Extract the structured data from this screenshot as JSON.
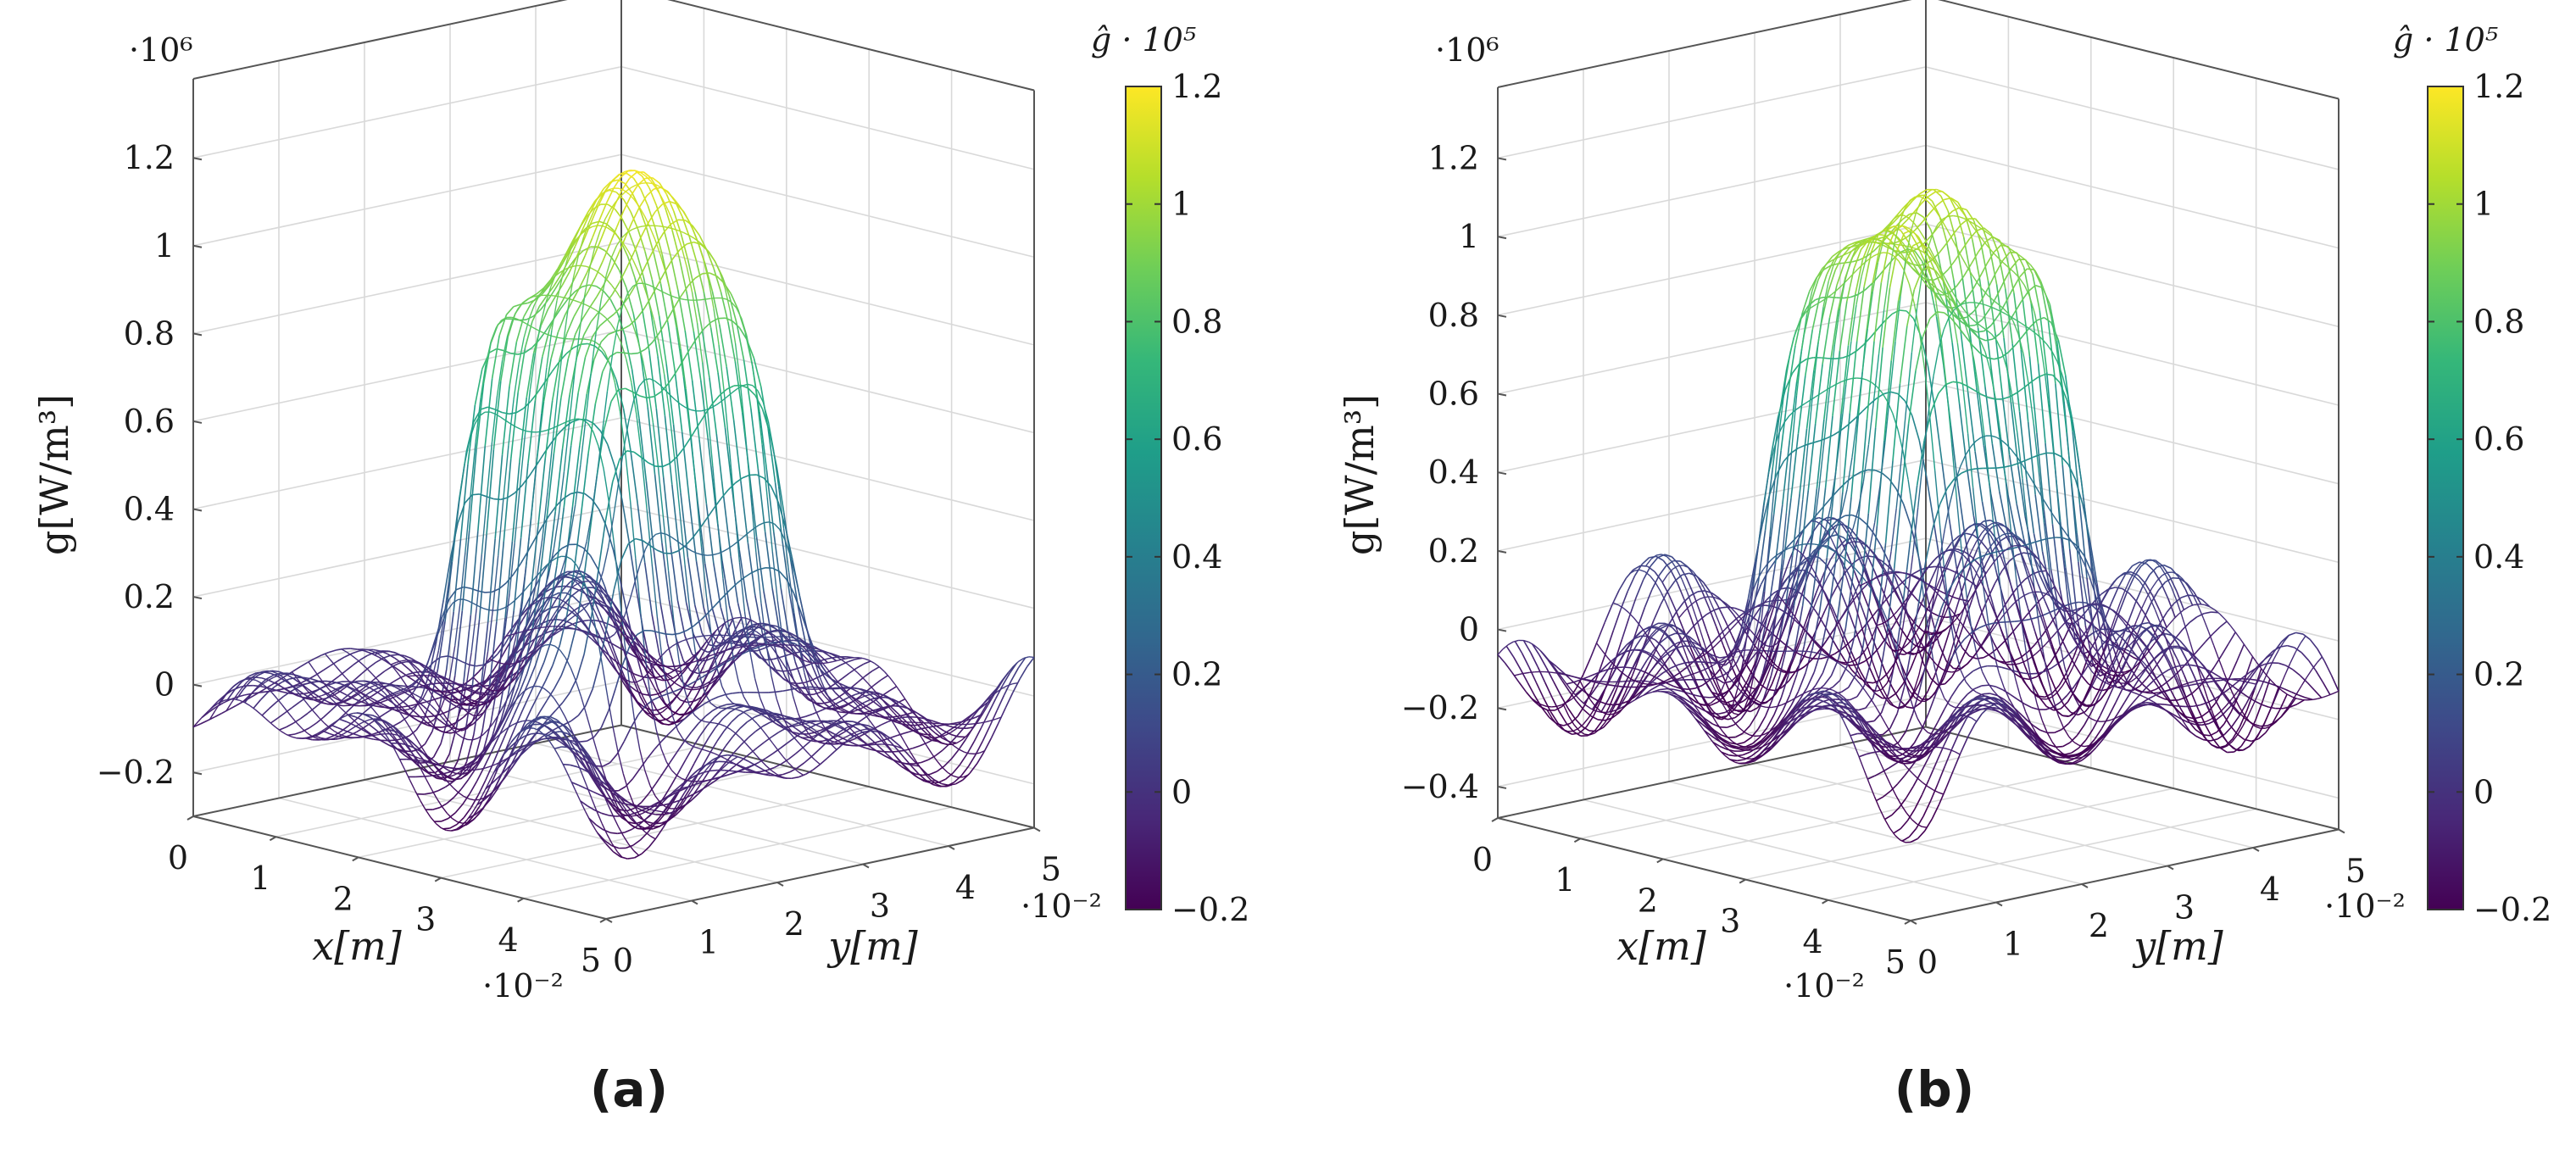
{
  "chart_data": [
    {
      "id": "a",
      "type": "surface3d",
      "subfigure_label": "(a)",
      "xlabel": "x[m]",
      "ylabel": "y[m]",
      "zlabel": "g[W/m³]",
      "x_multiplier": "·10⁻²",
      "y_multiplier": "·10⁻²",
      "z_multiplier": "·10⁶",
      "x_ticks": [
        "0",
        "1",
        "2",
        "3",
        "4",
        "5"
      ],
      "y_ticks": [
        "0",
        "1",
        "2",
        "3",
        "4",
        "5"
      ],
      "z_ticks": [
        "−0.2",
        "0",
        "0.2",
        "0.4",
        "0.6",
        "0.8",
        "1",
        "1.2"
      ],
      "x_tick_values": [
        0,
        1,
        2,
        3,
        4,
        5
      ],
      "y_tick_values": [
        0,
        1,
        2,
        3,
        4,
        5
      ],
      "z_tick_values": [
        -0.2,
        0,
        0.2,
        0.4,
        0.6,
        0.8,
        1.0,
        1.2
      ],
      "xlim": [
        0,
        5
      ],
      "ylim": [
        0,
        5
      ],
      "zlim": [
        -0.3,
        1.38
      ],
      "peak_value": 1.2,
      "min_value": -0.28,
      "plateau_x_range": [
        1.5,
        3.5
      ],
      "plateau_y_range": [
        1.5,
        3.5
      ],
      "colorbar": {
        "label": "ĝ · 10⁵",
        "range": [
          -0.2,
          1.2
        ],
        "ticks": [
          "−0.2",
          "0",
          "0.2",
          "0.4",
          "0.6",
          "0.8",
          "1",
          "1.2"
        ],
        "tick_values": [
          -0.2,
          0,
          0.2,
          0.4,
          0.6,
          0.8,
          1.0,
          1.2
        ],
        "colormap": [
          "#440154",
          "#482878",
          "#3e4989",
          "#31688e",
          "#26828e",
          "#1f9e89",
          "#35b779",
          "#6ece58",
          "#b5de2b",
          "#fde725"
        ]
      }
    },
    {
      "id": "b",
      "type": "surface3d",
      "subfigure_label": "(b)",
      "xlabel": "x[m]",
      "ylabel": "y[m]",
      "zlabel": "g[W/m³]",
      "x_multiplier": "·10⁻²",
      "y_multiplier": "·10⁻²",
      "z_multiplier": "·10⁶",
      "x_ticks": [
        "0",
        "1",
        "2",
        "3",
        "4",
        "5"
      ],
      "y_ticks": [
        "0",
        "1",
        "2",
        "3",
        "4",
        "5"
      ],
      "z_ticks": [
        "−0.4",
        "−0.2",
        "0",
        "0.2",
        "0.4",
        "0.6",
        "0.8",
        "1",
        "1.2"
      ],
      "x_tick_values": [
        0,
        1,
        2,
        3,
        4,
        5
      ],
      "y_tick_values": [
        0,
        1,
        2,
        3,
        4,
        5
      ],
      "z_tick_values": [
        -0.4,
        -0.2,
        0,
        0.2,
        0.4,
        0.6,
        0.8,
        1.0,
        1.2
      ],
      "xlim": [
        0,
        5
      ],
      "ylim": [
        0,
        5
      ],
      "zlim": [
        -0.48,
        1.38
      ],
      "peak_value": 1.2,
      "min_value": -0.38,
      "plateau_x_range": [
        1.5,
        3.5
      ],
      "plateau_y_range": [
        1.5,
        3.5
      ],
      "colorbar": {
        "label": "ĝ · 10⁵",
        "range": [
          -0.2,
          1.2
        ],
        "ticks": [
          "−0.2",
          "0",
          "0.2",
          "0.4",
          "0.6",
          "0.8",
          "1",
          "1.2"
        ],
        "tick_values": [
          -0.2,
          0,
          0.2,
          0.4,
          0.6,
          0.8,
          1.0,
          1.2
        ],
        "colormap": [
          "#440154",
          "#482878",
          "#3e4989",
          "#31688e",
          "#26828e",
          "#1f9e89",
          "#35b779",
          "#6ece58",
          "#b5de2b",
          "#fde725"
        ]
      }
    }
  ]
}
